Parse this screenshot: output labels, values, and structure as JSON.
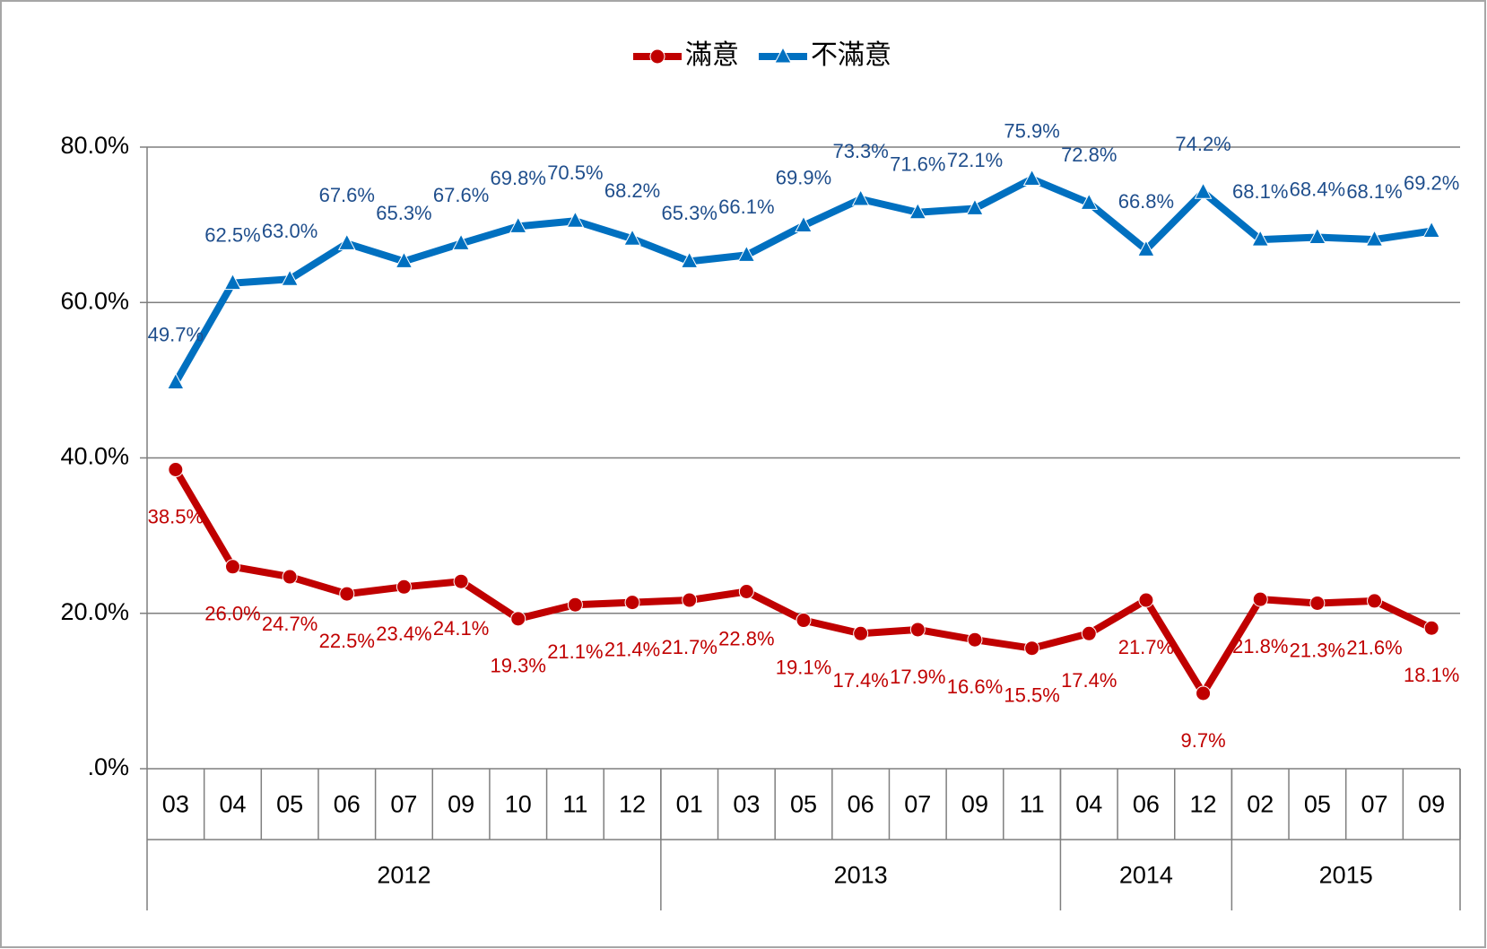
{
  "chart_data": {
    "type": "line",
    "categories": [
      "03",
      "04",
      "05",
      "06",
      "07",
      "09",
      "10",
      "11",
      "12",
      "01",
      "03",
      "05",
      "06",
      "07",
      "09",
      "11",
      "04",
      "06",
      "12",
      "02",
      "05",
      "07",
      "09"
    ],
    "category_groups": [
      {
        "name": "2012",
        "span": 9
      },
      {
        "name": "2013",
        "span": 7
      },
      {
        "name": "2014",
        "span": 3
      },
      {
        "name": "2015",
        "span": 4
      }
    ],
    "series": [
      {
        "name": "滿意",
        "color": "#c00000",
        "marker": "circle",
        "values": [
          38.5,
          26.0,
          24.7,
          22.5,
          23.4,
          24.1,
          19.3,
          21.1,
          21.4,
          21.7,
          22.8,
          19.1,
          17.4,
          17.9,
          16.6,
          15.5,
          17.4,
          21.7,
          9.7,
          21.8,
          21.3,
          21.6,
          18.1
        ],
        "value_labels": [
          "38.5%",
          "26.0%",
          "24.7%",
          "22.5%",
          "23.4%",
          "24.1%",
          "19.3%",
          "21.1%",
          "21.4%",
          "21.7%",
          "22.8%",
          "19.1%",
          "17.4%",
          "17.9%",
          "16.6%",
          "15.5%",
          "17.4%",
          "21.7%",
          "9.7%",
          "21.8%",
          "21.3%",
          "21.6%",
          "18.1%"
        ]
      },
      {
        "name": "不滿意",
        "color": "#0070c0",
        "marker": "triangle",
        "values": [
          49.7,
          62.5,
          63.0,
          67.6,
          65.3,
          67.6,
          69.8,
          70.5,
          68.2,
          65.3,
          66.1,
          69.9,
          73.3,
          71.6,
          72.1,
          75.9,
          72.8,
          66.8,
          74.2,
          68.1,
          68.4,
          68.1,
          69.2
        ],
        "value_labels": [
          "49.7%",
          "62.5%",
          "63.0%",
          "67.6%",
          "65.3%",
          "67.6%",
          "69.8%",
          "70.5%",
          "68.2%",
          "65.3%",
          "66.1%",
          "69.9%",
          "73.3%",
          "71.6%",
          "72.1%",
          "75.9%",
          "72.8%",
          "66.8%",
          "74.2%",
          "68.1%",
          "68.4%",
          "68.1%",
          "69.2%"
        ]
      }
    ],
    "ylim": [
      0,
      80
    ],
    "yticks": [
      {
        "value": 0,
        "label": ".0%"
      },
      {
        "value": 20,
        "label": "20.0%"
      },
      {
        "value": 40,
        "label": "40.0%"
      },
      {
        "value": 60,
        "label": "60.0%"
      },
      {
        "value": 80,
        "label": "80.0%"
      }
    ],
    "grid": true,
    "legend": "top"
  }
}
